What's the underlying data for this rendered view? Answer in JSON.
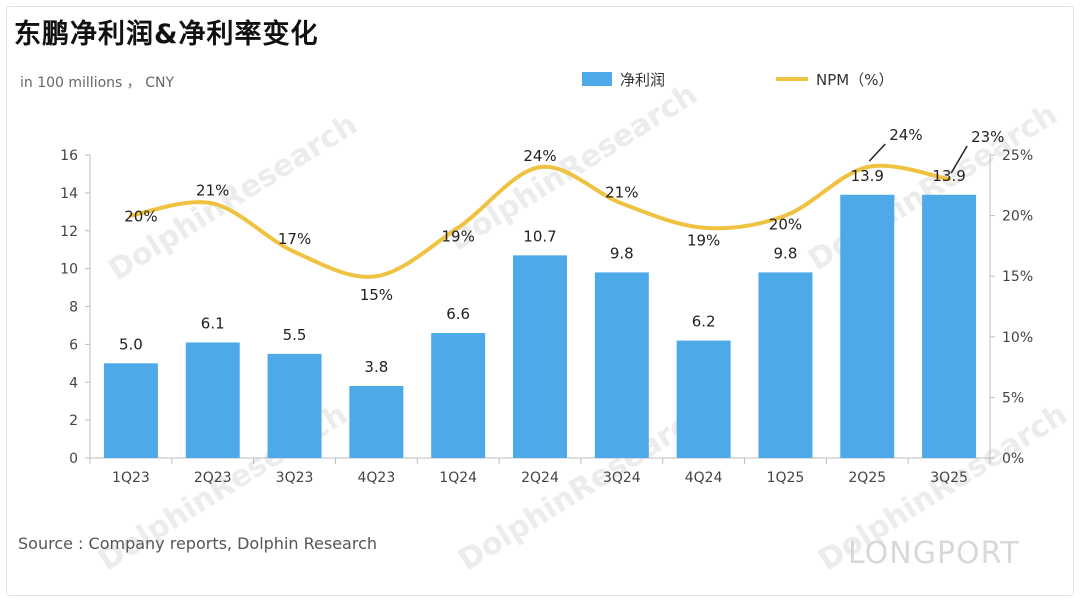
{
  "title": "东鹏净利润&净利率变化",
  "unit_note": "in 100 millions ， CNY",
  "source": "Source : Company reports, Dolphin Research",
  "brand": "LONGPORT",
  "watermark": "海豚投研 DolphinResearch",
  "chart_data": {
    "type": "bar",
    "categories": [
      "1Q23",
      "2Q23",
      "3Q23",
      "4Q23",
      "1Q24",
      "2Q24",
      "3Q24",
      "4Q24",
      "1Q25",
      "2Q25",
      "3Q25"
    ],
    "series": [
      {
        "name": "净利润",
        "type": "bar",
        "axis": "left",
        "color": "#4DA9E8",
        "values": [
          5.0,
          6.1,
          5.5,
          3.8,
          6.6,
          10.7,
          9.8,
          6.2,
          9.8,
          13.9,
          13.9
        ],
        "labels": [
          "5.0",
          "6.1",
          "5.5",
          "3.8",
          "6.6",
          "10.7",
          "9.8",
          "6.2",
          "9.8",
          "13.9",
          "13.9"
        ]
      },
      {
        "name": "NPM（%）",
        "type": "line",
        "axis": "right",
        "color": "#EFC341",
        "values": [
          20,
          21,
          17,
          15,
          19,
          24,
          21,
          19,
          20,
          24,
          23
        ],
        "labels": [
          "20%",
          "21%",
          "17%",
          "15%",
          "19%",
          "24%",
          "21%",
          "19%",
          "20%",
          "24%",
          "23%"
        ]
      }
    ],
    "y_left": {
      "min": 0,
      "max": 16,
      "ticks": [
        "0",
        "2",
        "4",
        "6",
        "8",
        "10",
        "12",
        "14",
        "16"
      ]
    },
    "y_right": {
      "min": 0,
      "max": 25,
      "ticks": [
        "0%",
        "5%",
        "10%",
        "15%",
        "20%",
        "25%"
      ]
    },
    "legend_position": "top",
    "grid": false
  }
}
